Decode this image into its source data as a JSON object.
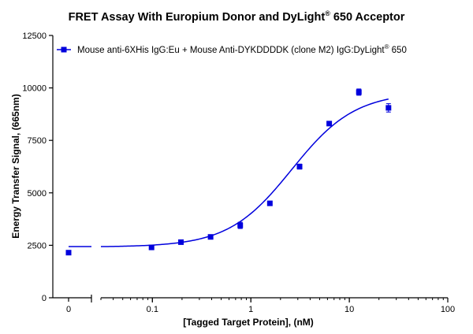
{
  "chart_data": {
    "type": "scatter",
    "title": "FRET Assay With Europium Donor and DyLight",
    "title_superscript": "®",
    "title_suffix": " 650 Acceptor",
    "xlabel": "[Tagged Target Protein], (nM)",
    "ylabel": "Energy Transfer Signal, (665nm)",
    "x_scale": "log",
    "xlim_log": [
      0.03,
      100
    ],
    "ylim": [
      0,
      12500
    ],
    "x_ticks": [
      {
        "value": 0.1,
        "label": "0.1"
      },
      {
        "value": 1,
        "label": "1"
      },
      {
        "value": 10,
        "label": "10"
      },
      {
        "value": 100,
        "label": "100"
      }
    ],
    "x_zero_tick": {
      "value": 0,
      "label": "0"
    },
    "y_ticks": [
      {
        "value": 0,
        "label": "0"
      },
      {
        "value": 2500,
        "label": "2500"
      },
      {
        "value": 5000,
        "label": "5000"
      },
      {
        "value": 7500,
        "label": "7500"
      },
      {
        "value": 10000,
        "label": "10000"
      },
      {
        "value": 12500,
        "label": "12500"
      }
    ],
    "legend": {
      "text": "Mouse anti-6XHis IgG:Eu + Mouse Anti-DYKDDDDK (clone M2) IgG:DyLight",
      "superscript": "®",
      "suffix": " 650",
      "position": "top-left"
    },
    "series": [
      {
        "name": "Mouse anti-6XHis IgG:Eu + Mouse Anti-DYKDDDDK (clone M2) IgG:DyLight® 650",
        "color": "#0000dd",
        "zero_point": {
          "x": 0,
          "y": 2150,
          "err": 40
        },
        "points": [
          {
            "x": 0.098,
            "y": 2400,
            "err": 50
          },
          {
            "x": 0.195,
            "y": 2650,
            "err": 60
          },
          {
            "x": 0.39,
            "y": 2900,
            "err": 60
          },
          {
            "x": 0.78,
            "y": 3450,
            "err": 150
          },
          {
            "x": 1.56,
            "y": 4500,
            "err": 70
          },
          {
            "x": 3.125,
            "y": 6250,
            "err": 120
          },
          {
            "x": 6.25,
            "y": 8300,
            "err": 70
          },
          {
            "x": 12.5,
            "y": 9800,
            "err": 150
          },
          {
            "x": 25,
            "y": 9050,
            "err": 200
          }
        ],
        "fit": {
          "bottom": 2420,
          "top": 9800,
          "ec50": 2.6,
          "hill": 1.35,
          "x_min": 0.03,
          "x_max": 25
        }
      }
    ]
  }
}
